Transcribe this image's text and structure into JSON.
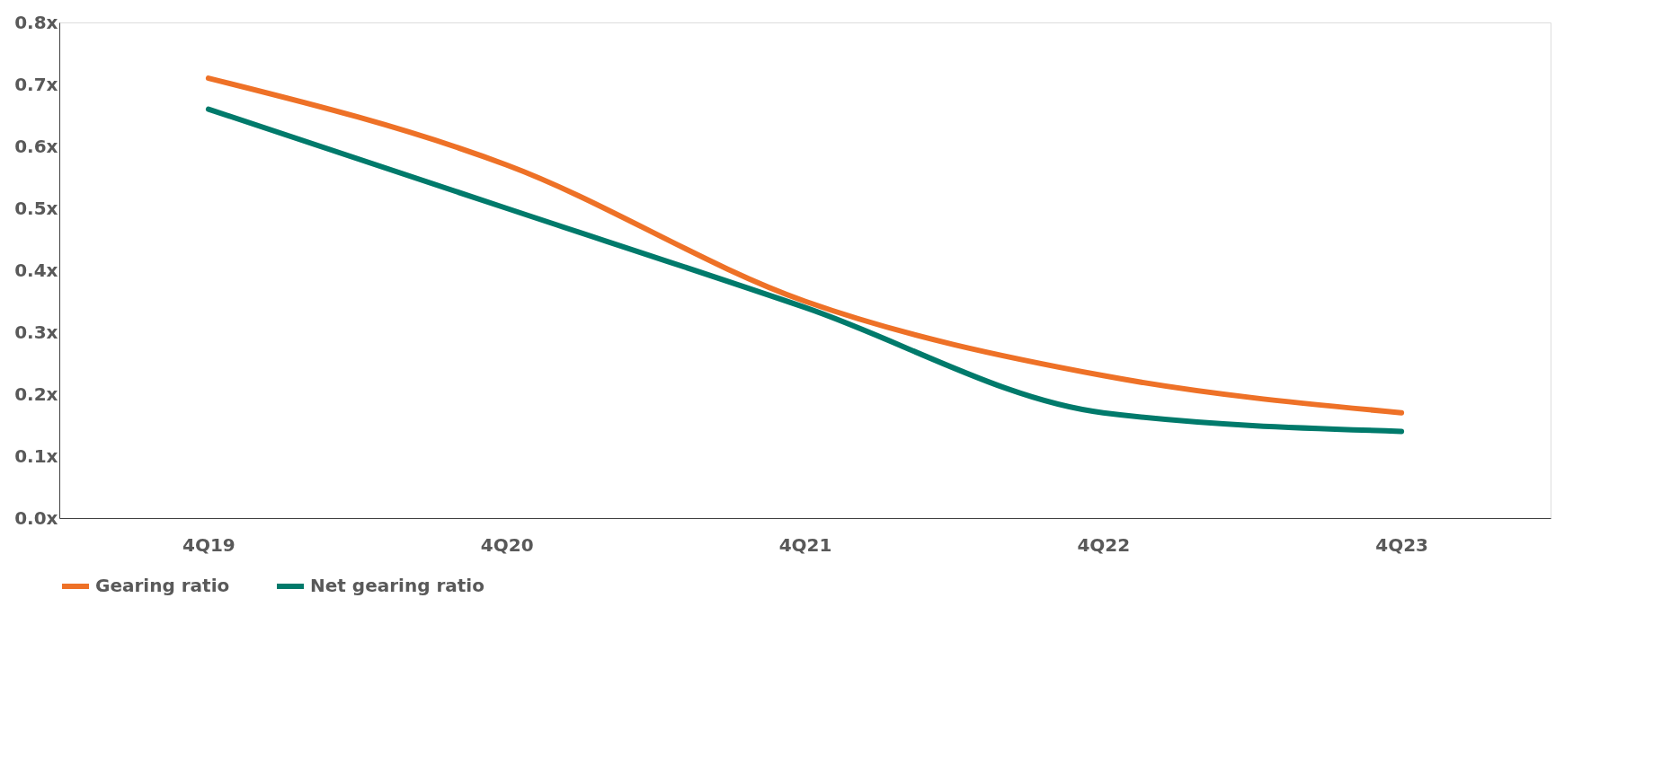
{
  "chart_data": {
    "type": "line",
    "categories": [
      "4Q19",
      "4Q20",
      "4Q21",
      "4Q22",
      "4Q23"
    ],
    "series": [
      {
        "name": "Gearing ratio",
        "color": "#ee7127",
        "values": [
          0.71,
          0.57,
          0.35,
          0.23,
          0.17
        ]
      },
      {
        "name": "Net gearing ratio",
        "color": "#007a6b",
        "values": [
          0.66,
          0.5,
          0.34,
          0.17,
          0.14
        ]
      }
    ],
    "ylim": [
      0,
      0.8
    ],
    "yticks": [
      {
        "value": 0,
        "label": "0.0x"
      },
      {
        "value": 0.1,
        "label": "0.1x"
      },
      {
        "value": 0.2,
        "label": "0.2x"
      },
      {
        "value": 0.3,
        "label": "0.3x"
      },
      {
        "value": 0.4,
        "label": "0.4x"
      },
      {
        "value": 0.5,
        "label": "0.5x"
      },
      {
        "value": 0.6,
        "label": "0.6x"
      },
      {
        "value": 0.7,
        "label": "0.7x"
      },
      {
        "value": 0.8,
        "label": "0.8x"
      }
    ],
    "grid": false,
    "legend": "bottom",
    "marker": "none",
    "line_style": "solid"
  }
}
